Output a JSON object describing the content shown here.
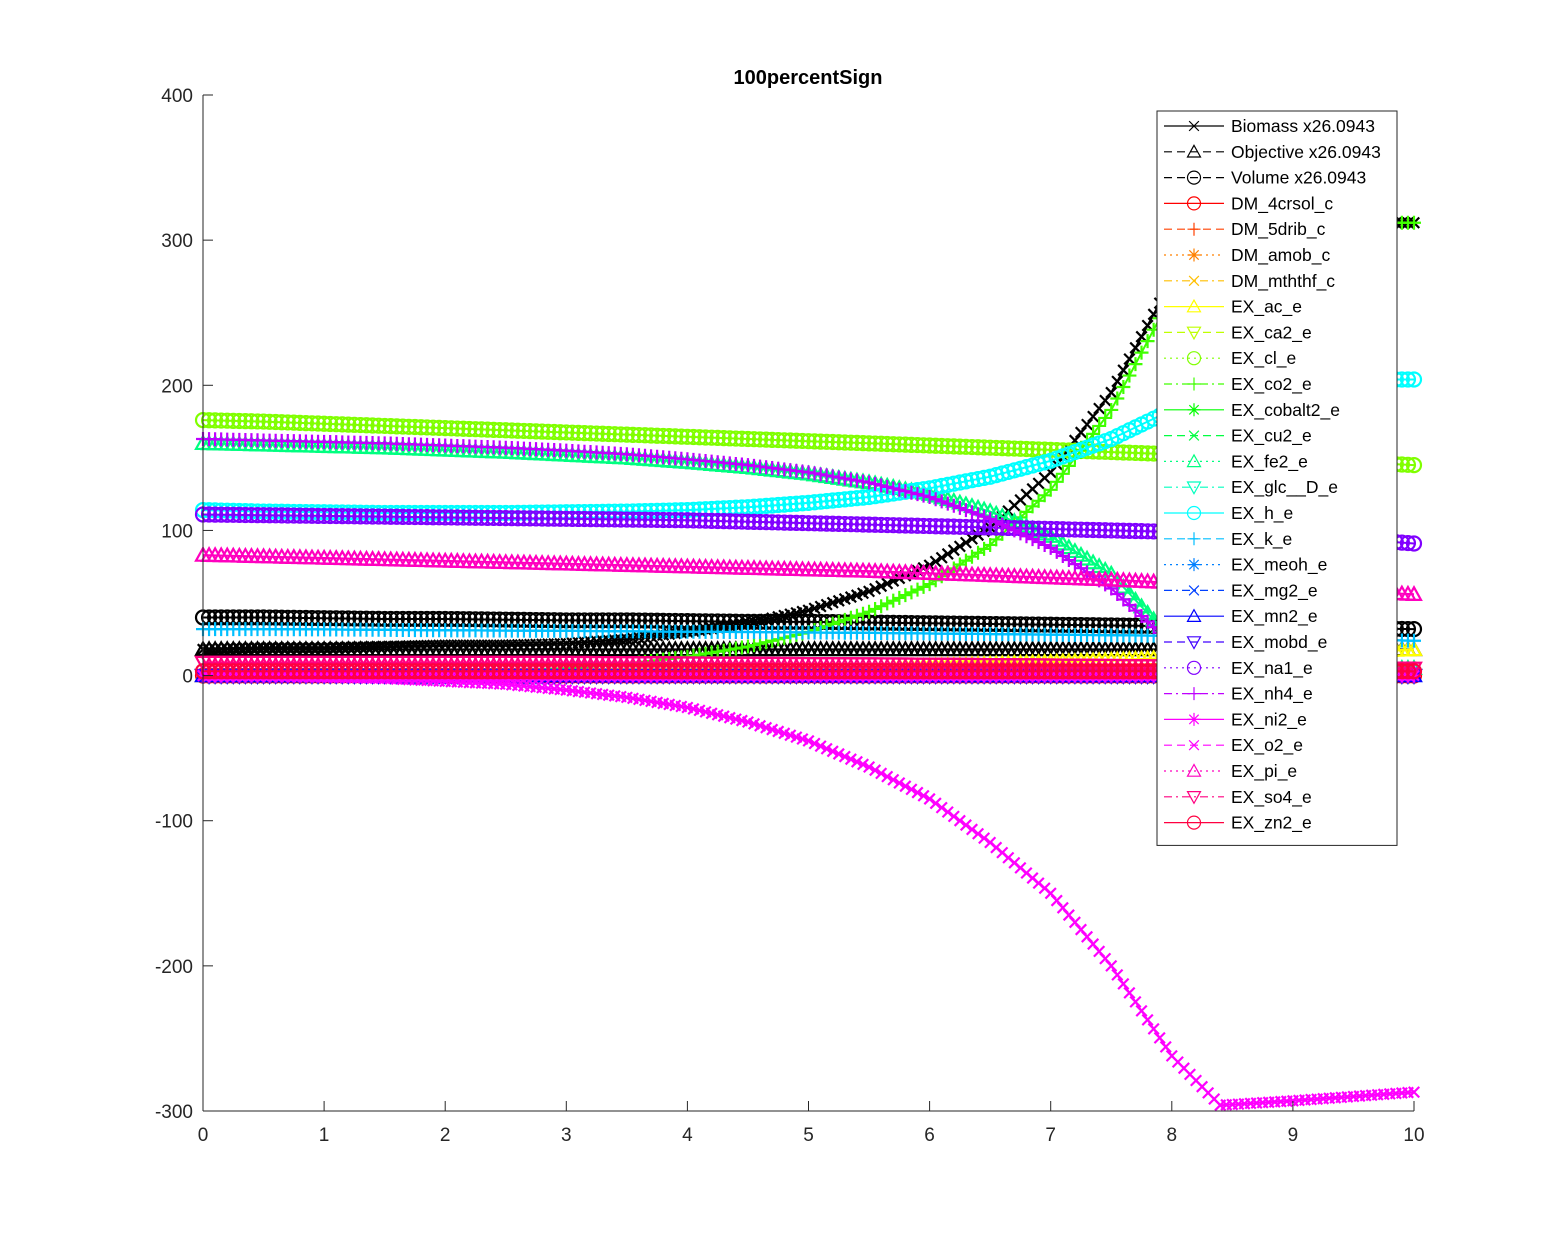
{
  "chart_data": {
    "type": "line",
    "title": "100percentSign",
    "xlabel": "",
    "ylabel": "",
    "xlim": [
      0,
      10
    ],
    "ylim": [
      -300,
      400
    ],
    "xticks": [
      "0",
      "1",
      "2",
      "3",
      "4",
      "5",
      "6",
      "7",
      "8",
      "9",
      "10"
    ],
    "yticks": [
      "-300",
      "-200",
      "-100",
      "0",
      "100",
      "200",
      "300",
      "400"
    ],
    "grid": false,
    "legend_position": "top-right",
    "x": [
      0,
      0.5,
      1,
      1.5,
      2,
      2.5,
      3,
      3.5,
      4,
      4.5,
      5,
      5.5,
      6,
      6.5,
      7,
      7.5,
      8,
      8.4,
      9,
      9.5,
      10
    ],
    "series": [
      {
        "name": "Biomass x26.0943",
        "color": "#000000",
        "marker": "x",
        "dash": "solid",
        "values": [
          18,
          19,
          19,
          20,
          21,
          21,
          22,
          25,
          30,
          36,
          45,
          58,
          76,
          102,
          140,
          195,
          272,
          312,
          312,
          312,
          312
        ]
      },
      {
        "name": "Objective x26.0943",
        "color": "#000000",
        "marker": "triangle",
        "dash": "dashed",
        "values": [
          18,
          18,
          18,
          18,
          18,
          18,
          18,
          18,
          18,
          18,
          18,
          18,
          18,
          18,
          18,
          18,
          18,
          18,
          18,
          18,
          18
        ]
      },
      {
        "name": "Volume x26.0943",
        "color": "#000000",
        "marker": "circle",
        "dash": "dashed",
        "values": [
          40,
          40,
          39.5,
          39,
          39,
          38.5,
          38,
          38,
          37.5,
          37,
          37,
          36.5,
          36,
          35.5,
          35,
          34.5,
          34,
          33.5,
          33,
          32.5,
          32
        ]
      },
      {
        "name": "DM_4crsol_c",
        "color": "#ff0000",
        "marker": "circle",
        "dash": "solid",
        "values": [
          0,
          0,
          0,
          0,
          0,
          0,
          0,
          0,
          0,
          0,
          0,
          0,
          0,
          0,
          0,
          0,
          0,
          0,
          0,
          0,
          0
        ]
      },
      {
        "name": "DM_5drib_c",
        "color": "#ff4000",
        "marker": "plus",
        "dash": "dashed",
        "values": [
          0,
          0,
          0,
          0,
          0,
          0,
          0,
          0,
          0,
          0,
          0,
          0,
          0,
          0,
          0,
          0,
          0,
          0,
          0,
          0,
          0
        ]
      },
      {
        "name": "DM_amob_c",
        "color": "#ff8000",
        "marker": "star",
        "dash": "dotted",
        "values": [
          0,
          0,
          0,
          0,
          0,
          0,
          0,
          0,
          0,
          0,
          0,
          0,
          0,
          0,
          0,
          0,
          0,
          0,
          0,
          0,
          0
        ]
      },
      {
        "name": "DM_mththf_c",
        "color": "#ffbf00",
        "marker": "x",
        "dash": "dashdot",
        "values": [
          0,
          0,
          0,
          0,
          0,
          0,
          0,
          0,
          0,
          0,
          0,
          0,
          0,
          0,
          0,
          0,
          0,
          0,
          0,
          0,
          0
        ]
      },
      {
        "name": "EX_ac_e",
        "color": "#ffff00",
        "marker": "triangle",
        "dash": "solid",
        "values": [
          0,
          0,
          0.2,
          0.4,
          0.8,
          1.2,
          1.7,
          2.3,
          3,
          3.8,
          4.7,
          5.7,
          6.8,
          8,
          9.3,
          10.7,
          12.2,
          13.5,
          15.2,
          16.6,
          18
        ]
      },
      {
        "name": "EX_ca2_e",
        "color": "#bfff00",
        "marker": "triangle-down",
        "dash": "dashed",
        "values": [
          0,
          0,
          0,
          0,
          0,
          0,
          0,
          0,
          0,
          0,
          0,
          0,
          0,
          0,
          0,
          0,
          0,
          0,
          0,
          0,
          0
        ]
      },
      {
        "name": "EX_cl_e",
        "color": "#80ff00",
        "marker": "circle",
        "dash": "dotted",
        "values": [
          176,
          175,
          173.5,
          172,
          170.5,
          169,
          167.5,
          166,
          164.5,
          163,
          161.5,
          160,
          158.5,
          157,
          155.5,
          154,
          152.5,
          151,
          149,
          147,
          145
        ]
      },
      {
        "name": "EX_co2_e",
        "color": "#40ff00",
        "marker": "plus",
        "dash": "dashdot",
        "values": [
          0,
          0.5,
          1,
          1.5,
          2,
          3,
          5,
          8,
          13,
          20,
          30,
          44,
          63,
          90,
          128,
          183,
          262,
          312,
          312,
          312,
          312
        ]
      },
      {
        "name": "EX_cobalt2_e",
        "color": "#00ff00",
        "marker": "star",
        "dash": "solid",
        "values": [
          0,
          0,
          0,
          0,
          0,
          0,
          0,
          0,
          0,
          0,
          0,
          0,
          0,
          0,
          0,
          0,
          0,
          0,
          0,
          0,
          0
        ]
      },
      {
        "name": "EX_cu2_e",
        "color": "#00ff40",
        "marker": "x",
        "dash": "dashed",
        "values": [
          0,
          0,
          0,
          0,
          0,
          0,
          0,
          0,
          0,
          0,
          0,
          0,
          0,
          0,
          0,
          0,
          0,
          0,
          0,
          0,
          0
        ]
      },
      {
        "name": "EX_fe2_e",
        "color": "#00ff80",
        "marker": "triangle",
        "dash": "dotted",
        "values": [
          160,
          159,
          158,
          157,
          155.5,
          154,
          152,
          150,
          147,
          143.5,
          139,
          133,
          125,
          113,
          96,
          70,
          25,
          5,
          5,
          5,
          5
        ]
      },
      {
        "name": "EX_glc__D_e",
        "color": "#00ffbf",
        "marker": "triangle-down",
        "dash": "dashdot",
        "values": [
          0,
          0,
          0,
          0,
          0,
          0,
          0,
          0,
          0,
          0,
          0,
          0,
          0,
          0,
          0,
          0,
          0,
          0,
          0,
          0,
          0
        ]
      },
      {
        "name": "EX_h_e",
        "color": "#00ffff",
        "marker": "circle",
        "dash": "solid",
        "values": [
          114,
          113,
          112.5,
          112,
          112,
          112,
          112.5,
          113,
          114,
          116,
          119,
          123,
          129,
          137,
          148,
          163,
          183,
          199,
          203,
          204,
          204
        ]
      },
      {
        "name": "EX_k_e",
        "color": "#00bfff",
        "marker": "plus",
        "dash": "dashed",
        "values": [
          32,
          32,
          31.8,
          31.5,
          31.2,
          31,
          30.8,
          30.5,
          30.2,
          30,
          29.7,
          29.4,
          29,
          28.6,
          28.2,
          27.8,
          27.4,
          27,
          26,
          25,
          24
        ]
      },
      {
        "name": "EX_meoh_e",
        "color": "#0080ff",
        "marker": "star",
        "dash": "dotted",
        "values": [
          0,
          0,
          0,
          0,
          0,
          0,
          0,
          0,
          0,
          0,
          0,
          0,
          0,
          0,
          0,
          0,
          0,
          0,
          0,
          0,
          0
        ]
      },
      {
        "name": "EX_mg2_e",
        "color": "#0040ff",
        "marker": "x",
        "dash": "dashdot",
        "values": [
          0,
          0,
          0,
          0,
          0,
          0,
          0,
          0,
          0,
          0,
          0,
          0,
          0,
          0,
          0,
          0,
          0,
          0,
          0,
          0,
          0
        ]
      },
      {
        "name": "EX_mn2_e",
        "color": "#0000ff",
        "marker": "triangle",
        "dash": "solid",
        "values": [
          0,
          0,
          0,
          0,
          0,
          0,
          0,
          0,
          0,
          0,
          0,
          0,
          0,
          0,
          0,
          0,
          0,
          0,
          0,
          0,
          0
        ]
      },
      {
        "name": "EX_mobd_e",
        "color": "#4000ff",
        "marker": "triangle-down",
        "dash": "dashed",
        "values": [
          0,
          0,
          0,
          0,
          0,
          0,
          0,
          0,
          0,
          0,
          0,
          0,
          0,
          0,
          0,
          0,
          0,
          0,
          0,
          0,
          0
        ]
      },
      {
        "name": "EX_na1_e",
        "color": "#8000ff",
        "marker": "circle",
        "dash": "dotted",
        "values": [
          111,
          110.5,
          110,
          109.5,
          109,
          108.5,
          108,
          107.5,
          107,
          106,
          105,
          104,
          103,
          102,
          101,
          100,
          99,
          98,
          96,
          94,
          91
        ]
      },
      {
        "name": "EX_nh4_e",
        "color": "#bf00ff",
        "marker": "plus",
        "dash": "dashdot",
        "values": [
          163,
          162,
          161,
          160,
          158.5,
          157,
          155,
          152.5,
          149,
          145,
          140,
          133,
          123,
          108,
          88,
          60,
          22,
          5,
          5,
          5,
          5
        ]
      },
      {
        "name": "EX_ni2_e",
        "color": "#ff00ff",
        "marker": "star",
        "dash": "solid",
        "values": [
          0,
          0,
          0,
          0,
          0,
          0,
          0,
          0,
          0,
          0,
          0,
          0,
          0,
          0,
          0,
          0,
          0,
          0,
          0,
          0,
          0
        ]
      },
      {
        "name": "EX_o2_e",
        "color": "#ff00ff",
        "marker": "x",
        "dash": "dashed",
        "values": [
          0,
          0,
          -1,
          -2,
          -4,
          -6,
          -10,
          -15,
          -22,
          -32,
          -45,
          -63,
          -85,
          -115,
          -150,
          -200,
          -262,
          -296,
          -293,
          -290,
          -287
        ]
      },
      {
        "name": "EX_pi_e",
        "color": "#ff00bf",
        "marker": "triangle",
        "dash": "dotted",
        "values": [
          83,
          82,
          81,
          80,
          79,
          78,
          77,
          76,
          75,
          74,
          73,
          72,
          70.5,
          69,
          67.5,
          66,
          64,
          62,
          60,
          58,
          56
        ]
      },
      {
        "name": "EX_so4_e",
        "color": "#ff0080",
        "marker": "triangle-down",
        "dash": "dashdot",
        "values": [
          9,
          9,
          9,
          9,
          9,
          9,
          9,
          8.8,
          8.6,
          8.4,
          8.2,
          8,
          7.8,
          7.5,
          7.2,
          6.9,
          6.5,
          6,
          5.6,
          5.2,
          5
        ]
      },
      {
        "name": "EX_zn2_e",
        "color": "#ff0040",
        "marker": "circle",
        "dash": "solid",
        "values": [
          3,
          3,
          3,
          3,
          3,
          3,
          3,
          3,
          3,
          3,
          3,
          3,
          3,
          3,
          3,
          3,
          3,
          3,
          3,
          3,
          3
        ]
      }
    ]
  }
}
